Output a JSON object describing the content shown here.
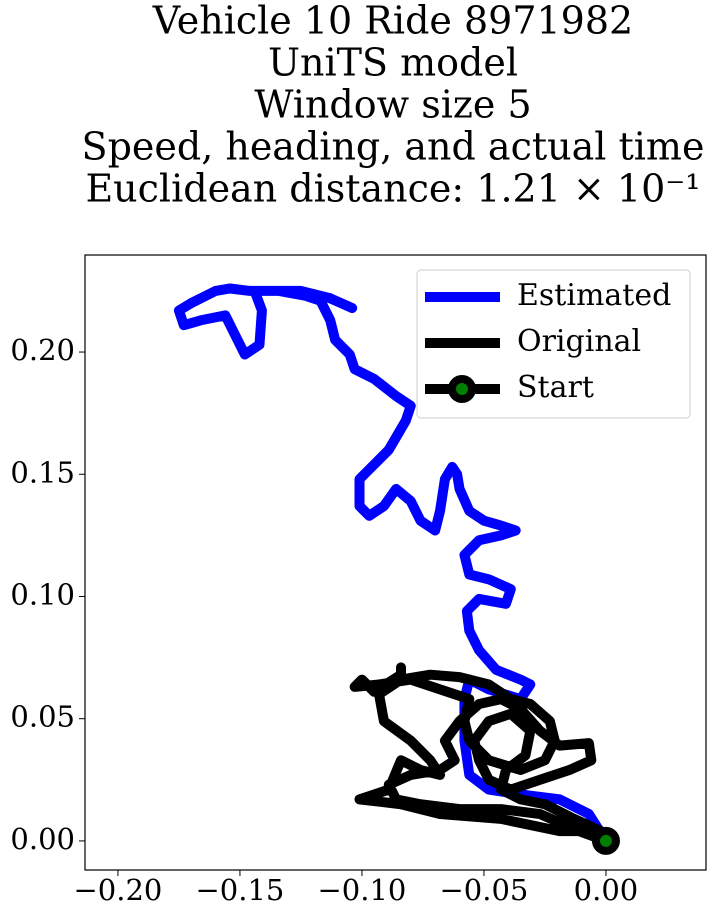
{
  "chart_data": {
    "type": "line",
    "title": [
      "Vehicle 10 Ride 8971982",
      "UniTS model",
      "Window size 5",
      "Speed, heading, and actual time",
      "Euclidean distance: 1.21 × 10⁻¹"
    ],
    "xlim": [
      -0.2135,
      0.041
    ],
    "ylim": [
      -0.0119,
      0.2397
    ],
    "xticks": [
      {
        "value": -0.2,
        "label": "−0.20"
      },
      {
        "value": -0.15,
        "label": "−0.15"
      },
      {
        "value": -0.1,
        "label": "−0.10"
      },
      {
        "value": -0.05,
        "label": "−0.05"
      },
      {
        "value": 0,
        "label": "0.00"
      }
    ],
    "yticks": [
      {
        "value": 0,
        "label": "0.00"
      },
      {
        "value": 0.05,
        "label": "0.05"
      },
      {
        "value": 0.1,
        "label": "0.10"
      },
      {
        "value": 0.15,
        "label": "0.15"
      },
      {
        "value": 0.2,
        "label": "0.20"
      }
    ],
    "legend": "upper right",
    "series": [
      {
        "name": "Estimated",
        "color": "#0000ff",
        "x": [
          0,
          -0.007,
          -0.019,
          -0.035,
          -0.048,
          -0.056,
          -0.058,
          -0.058,
          -0.056,
          -0.048,
          -0.035,
          -0.031,
          -0.035,
          -0.045,
          -0.052,
          -0.056,
          -0.057,
          -0.052,
          -0.041,
          -0.039,
          -0.048,
          -0.056,
          -0.058,
          -0.052,
          -0.043,
          -0.037,
          -0.043,
          -0.05,
          -0.056,
          -0.06,
          -0.061,
          -0.063,
          -0.066,
          -0.068,
          -0.07,
          -0.076,
          -0.08,
          -0.086,
          -0.091,
          -0.097,
          -0.101,
          -0.101,
          -0.095,
          -0.089,
          -0.082,
          -0.08,
          -0.086,
          -0.095,
          -0.103,
          -0.105,
          -0.111,
          -0.113,
          -0.117,
          -0.123,
          -0.134,
          -0.146,
          -0.154,
          -0.16,
          -0.17,
          -0.175,
          -0.173,
          -0.166,
          -0.156,
          -0.152,
          -0.148,
          -0.142,
          -0.141,
          -0.144,
          -0.138,
          -0.125,
          -0.113,
          -0.104
        ],
        "y": [
          0,
          0.011,
          0.017,
          0.019,
          0.021,
          0.027,
          0.041,
          0.058,
          0.066,
          0.062,
          0.058,
          0.064,
          0.066,
          0.07,
          0.078,
          0.086,
          0.094,
          0.099,
          0.097,
          0.103,
          0.107,
          0.109,
          0.117,
          0.123,
          0.125,
          0.127,
          0.129,
          0.131,
          0.135,
          0.144,
          0.15,
          0.153,
          0.148,
          0.135,
          0.127,
          0.131,
          0.139,
          0.144,
          0.137,
          0.133,
          0.137,
          0.148,
          0.154,
          0.16,
          0.172,
          0.178,
          0.182,
          0.189,
          0.193,
          0.199,
          0.205,
          0.213,
          0.221,
          0.223,
          0.225,
          0.225,
          0.226,
          0.225,
          0.22,
          0.217,
          0.211,
          0.213,
          0.215,
          0.207,
          0.199,
          0.203,
          0.217,
          0.225,
          0.225,
          0.225,
          0.222,
          0.218
        ]
      },
      {
        "name": "Original",
        "color": "#000000",
        "x": [
          0,
          -0.011,
          -0.027,
          -0.043,
          -0.06,
          -0.076,
          -0.086,
          -0.089,
          -0.08,
          -0.068,
          -0.062,
          -0.066,
          -0.06,
          -0.052,
          -0.043,
          -0.035,
          -0.027,
          -0.019,
          -0.007,
          -0.006,
          -0.015,
          -0.027,
          -0.039,
          -0.048,
          -0.052,
          -0.054,
          -0.048,
          -0.039,
          -0.031,
          -0.033,
          -0.041,
          -0.043,
          -0.035,
          -0.025,
          -0.013,
          -0.002,
          -0.019,
          -0.043,
          -0.068,
          -0.084,
          -0.101,
          -0.089,
          -0.084,
          -0.076,
          -0.068,
          -0.072,
          -0.08,
          -0.091,
          -0.093,
          -0.084,
          -0.072,
          -0.06,
          -0.048,
          -0.039,
          -0.031,
          -0.023,
          -0.021,
          -0.025,
          -0.035,
          -0.048,
          -0.056,
          -0.058,
          -0.056,
          -0.068,
          -0.08,
          -0.093,
          -0.103,
          -0.1,
          -0.095,
          -0.084,
          -0.084
        ],
        "y": [
          0,
          0.004,
          0.011,
          0.013,
          0.013,
          0.015,
          0.017,
          0.023,
          0.027,
          0.029,
          0.033,
          0.041,
          0.049,
          0.056,
          0.058,
          0.054,
          0.045,
          0.039,
          0.04,
          0.033,
          0.029,
          0.025,
          0.021,
          0.025,
          0.033,
          0.041,
          0.049,
          0.052,
          0.045,
          0.035,
          0.029,
          0.021,
          0.017,
          0.015,
          0.009,
          0.004,
          0.004,
          0.009,
          0.011,
          0.015,
          0.017,
          0.021,
          0.033,
          0.029,
          0.027,
          0.033,
          0.041,
          0.049,
          0.06,
          0.066,
          0.068,
          0.067,
          0.064,
          0.058,
          0.056,
          0.049,
          0.041,
          0.033,
          0.029,
          0.033,
          0.041,
          0.049,
          0.058,
          0.062,
          0.066,
          0.064,
          0.063,
          0.066,
          0.061,
          0.068,
          0.071
        ]
      },
      {
        "name": "Start",
        "color": "#000000",
        "marker_color": "#008000",
        "x": [
          0
        ],
        "y": [
          0
        ]
      }
    ]
  }
}
